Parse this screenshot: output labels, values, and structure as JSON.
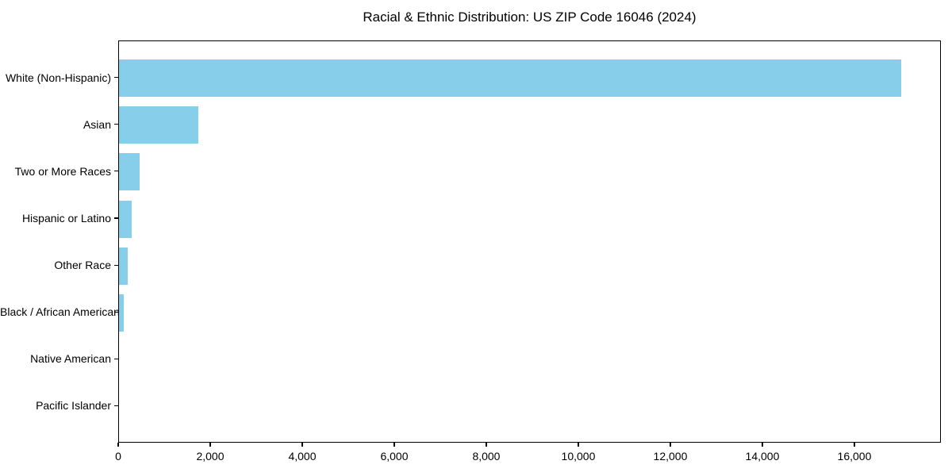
{
  "chart_data": {
    "type": "bar",
    "orientation": "horizontal",
    "title": "Racial & Ethnic Distribution: US ZIP Code 16046 (2024)",
    "categories": [
      "White (Non-Hispanic)",
      "Asian",
      "Two or More Races",
      "Hispanic or Latino",
      "Other Race",
      "Black / African American",
      "Native American",
      "Pacific Islander"
    ],
    "values": [
      17000,
      1720,
      450,
      270,
      185,
      100,
      0,
      0
    ],
    "bar_color": "#87CEEB",
    "background_color": "#ffffff",
    "text_color": "#000000",
    "xlabel": "",
    "ylabel": "",
    "xlim": [
      0,
      17880
    ],
    "x_ticks": [
      0,
      2000,
      4000,
      6000,
      8000,
      10000,
      12000,
      14000,
      16000
    ],
    "x_tick_labels": [
      "0",
      "2,000",
      "4,000",
      "6,000",
      "8,000",
      "10,000",
      "12,000",
      "14,000",
      "16,000"
    ],
    "grid": false,
    "legend": "none"
  }
}
